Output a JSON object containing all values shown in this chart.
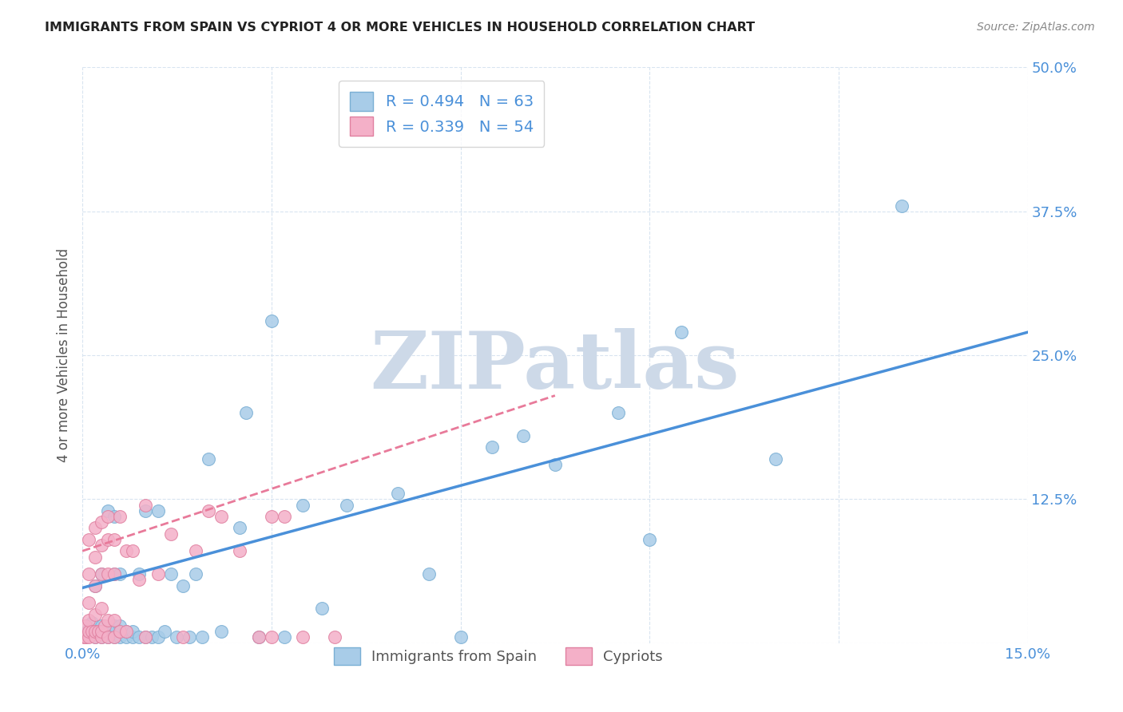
{
  "title": "IMMIGRANTS FROM SPAIN VS CYPRIOT 4 OR MORE VEHICLES IN HOUSEHOLD CORRELATION CHART",
  "source": "Source: ZipAtlas.com",
  "ylabel": "4 or more Vehicles in Household",
  "xlim": [
    0.0,
    0.15
  ],
  "ylim": [
    0.0,
    0.5
  ],
  "xticks": [
    0.0,
    0.03,
    0.06,
    0.09,
    0.12,
    0.15
  ],
  "yticks": [
    0.0,
    0.125,
    0.25,
    0.375,
    0.5
  ],
  "background_color": "#ffffff",
  "grid_color": "#d8e4f0",
  "watermark_text": "ZIPatlas",
  "watermark_color": "#cdd9e8",
  "legend1_label": "R = 0.494   N = 63",
  "legend2_label": "R = 0.339   N = 54",
  "scatter1_color": "#a8cce8",
  "scatter2_color": "#f4b0c8",
  "scatter1_edge": "#7aafd4",
  "scatter2_edge": "#e080a0",
  "line1_color": "#4a90d9",
  "line2_color": "#e87a9a",
  "blue_points_x": [
    0.0005,
    0.001,
    0.001,
    0.0015,
    0.002,
    0.002,
    0.002,
    0.0025,
    0.003,
    0.003,
    0.003,
    0.003,
    0.0035,
    0.004,
    0.004,
    0.004,
    0.005,
    0.005,
    0.005,
    0.005,
    0.005,
    0.006,
    0.006,
    0.006,
    0.007,
    0.007,
    0.008,
    0.008,
    0.009,
    0.009,
    0.01,
    0.01,
    0.011,
    0.012,
    0.012,
    0.013,
    0.014,
    0.015,
    0.016,
    0.017,
    0.018,
    0.019,
    0.02,
    0.022,
    0.025,
    0.026,
    0.028,
    0.03,
    0.032,
    0.035,
    0.038,
    0.042,
    0.05,
    0.055,
    0.06,
    0.065,
    0.07,
    0.075,
    0.085,
    0.09,
    0.095,
    0.11,
    0.13
  ],
  "blue_points_y": [
    0.005,
    0.008,
    0.012,
    0.018,
    0.005,
    0.01,
    0.05,
    0.008,
    0.005,
    0.01,
    0.015,
    0.06,
    0.008,
    0.005,
    0.01,
    0.115,
    0.005,
    0.01,
    0.015,
    0.06,
    0.11,
    0.005,
    0.015,
    0.06,
    0.005,
    0.01,
    0.005,
    0.01,
    0.005,
    0.06,
    0.005,
    0.115,
    0.005,
    0.005,
    0.115,
    0.01,
    0.06,
    0.005,
    0.05,
    0.005,
    0.06,
    0.005,
    0.16,
    0.01,
    0.1,
    0.2,
    0.005,
    0.28,
    0.005,
    0.12,
    0.03,
    0.12,
    0.13,
    0.06,
    0.005,
    0.17,
    0.18,
    0.155,
    0.2,
    0.09,
    0.27,
    0.16,
    0.38
  ],
  "pink_points_x": [
    0.0003,
    0.0005,
    0.0005,
    0.001,
    0.001,
    0.001,
    0.001,
    0.001,
    0.001,
    0.0015,
    0.002,
    0.002,
    0.002,
    0.002,
    0.002,
    0.002,
    0.0025,
    0.003,
    0.003,
    0.003,
    0.003,
    0.003,
    0.003,
    0.0035,
    0.004,
    0.004,
    0.004,
    0.004,
    0.004,
    0.005,
    0.005,
    0.005,
    0.005,
    0.006,
    0.006,
    0.007,
    0.007,
    0.008,
    0.009,
    0.01,
    0.01,
    0.012,
    0.014,
    0.016,
    0.018,
    0.02,
    0.022,
    0.025,
    0.028,
    0.03,
    0.03,
    0.032,
    0.035,
    0.04
  ],
  "pink_points_y": [
    0.005,
    0.005,
    0.015,
    0.005,
    0.01,
    0.02,
    0.035,
    0.06,
    0.09,
    0.01,
    0.005,
    0.01,
    0.025,
    0.05,
    0.075,
    0.1,
    0.01,
    0.005,
    0.01,
    0.03,
    0.06,
    0.085,
    0.105,
    0.015,
    0.005,
    0.02,
    0.06,
    0.09,
    0.11,
    0.005,
    0.02,
    0.06,
    0.09,
    0.01,
    0.11,
    0.01,
    0.08,
    0.08,
    0.055,
    0.005,
    0.12,
    0.06,
    0.095,
    0.005,
    0.08,
    0.115,
    0.11,
    0.08,
    0.005,
    0.005,
    0.11,
    0.11,
    0.005,
    0.005
  ],
  "line1_x": [
    0.0,
    0.15
  ],
  "line1_y": [
    0.048,
    0.27
  ],
  "line2_x": [
    0.0,
    0.075
  ],
  "line2_y": [
    0.08,
    0.215
  ]
}
